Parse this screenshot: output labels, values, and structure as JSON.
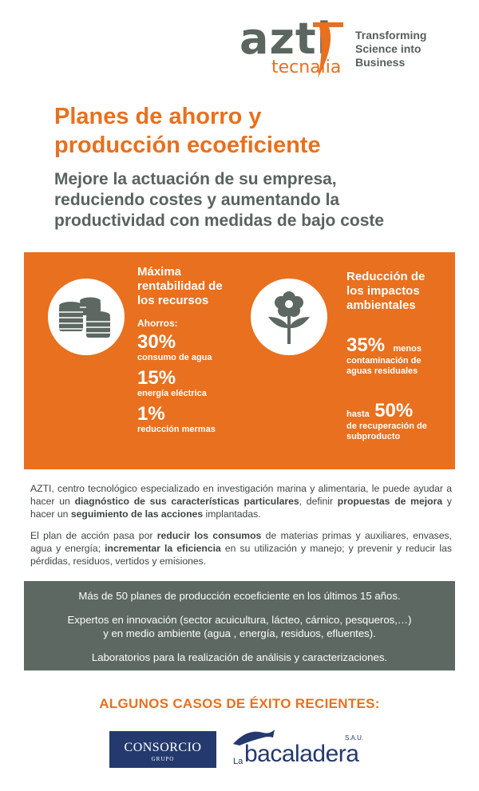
{
  "header": {
    "logo_main": "azti",
    "logo_sub": "tecnalia",
    "tagline": [
      "Transforming",
      "Science into",
      "Business"
    ]
  },
  "title": [
    "Planes de ahorro y",
    "producción ecoeficiente"
  ],
  "subtitle": [
    "Mejore la actuación de su empresa,",
    "reduciendo costes y aumentando la",
    "productividad con medidas de bajo coste"
  ],
  "left_panel": {
    "icon": "coins-stack-icon",
    "heading": [
      "Máxima",
      "rentabilidad de",
      "los recursos"
    ],
    "savings_label": "Ahorros:",
    "stats": [
      {
        "value": "30%",
        "label": "consumo de agua"
      },
      {
        "value": "15%",
        "label": "energía eléctrica"
      },
      {
        "value": "1%",
        "label": "reducción mermas"
      }
    ]
  },
  "right_panel": {
    "icon": "flower-icon",
    "heading": [
      "Reducción de",
      "los impactos",
      "ambientales"
    ],
    "stat1": {
      "value": "35%",
      "suffix": "menos",
      "label": [
        "contaminación de",
        "aguas residuales"
      ]
    },
    "stat2": {
      "prefix": "hasta",
      "value": "50%",
      "label": [
        "de recuperación de",
        "subproducto"
      ]
    }
  },
  "body": {
    "p1_a": "AZTI, centro tecnológico especializado en investigación marina y alimentaria, le puede ayudar a hacer un ",
    "p1_b": "diagnóstico de sus características particulares",
    "p1_c": ", definir ",
    "p1_d": "propuestas de mejora",
    "p1_e": " y hacer un ",
    "p1_f": "seguimiento de las acciones",
    "p1_g": " implantadas.",
    "p2_a": "El plan de acción pasa por ",
    "p2_b": "reducir los consumos",
    "p2_c": " de materias primas y auxiliares, envases, agua y energía; ",
    "p2_d": "incrementar la eficiencia",
    "p2_e": " en su utilización y manejo; y prevenir y reducir las pérdidas, residuos, vertidos y emisiones."
  },
  "highlights": {
    "line1": "Más de 50 planes de producción ecoeficiente en los últimos 15 años.",
    "line2a": "Expertos en innovación (sector acuicultura, lácteo, cárnico, pesqueros,…)",
    "line2b": "y en medio ambiente (agua , energía, residuos, efluentes).",
    "line3": "Laboratorios para la realización de análisis y caracterizaciones."
  },
  "cases": {
    "heading": "ALGUNOS CASOS DE ÉXITO RECIENTES:",
    "logo1_name": "CONSORCIO",
    "logo1_sub": "GRUPO",
    "logo2_la": "La",
    "logo2_name": "bacaladera",
    "logo2_sau": "S.A.U."
  },
  "colors": {
    "orange": "#e8701f",
    "grey": "#5c6861",
    "text": "#58635e",
    "navy": "#243a6e"
  }
}
